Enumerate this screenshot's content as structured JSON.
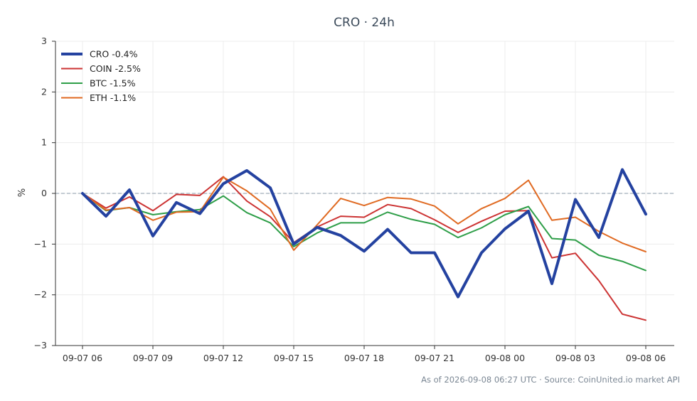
{
  "chart_data": {
    "type": "line",
    "title": "CRO · 24h",
    "xlabel": "",
    "ylabel": "%",
    "ylim": [
      -3,
      3
    ],
    "yticks": [
      -3,
      -2,
      -1,
      0,
      1,
      2,
      3
    ],
    "ytick_labels": [
      "−3",
      "−2",
      "−1",
      "0",
      "1",
      "2",
      "3"
    ],
    "x_tick_labels": [
      "09-07 06",
      "09-07 09",
      "09-07 12",
      "09-07 15",
      "09-07 18",
      "09-07 21",
      "09-08 00",
      "09-08 03",
      "09-08 06"
    ],
    "x": [
      "09-07 06",
      "09-07 07",
      "09-07 08",
      "09-07 09",
      "09-07 10",
      "09-07 11",
      "09-07 12",
      "09-07 13",
      "09-07 14",
      "09-07 15",
      "09-07 16",
      "09-07 17",
      "09-07 18",
      "09-07 19",
      "09-07 20",
      "09-07 21",
      "09-07 22",
      "09-07 23",
      "09-08 00",
      "09-08 01",
      "09-08 02",
      "09-08 03",
      "09-08 04",
      "09-08 05",
      "09-08 06"
    ],
    "grid": true,
    "legend_position": "top-left",
    "zero_line": true,
    "series": [
      {
        "name": "CRO -0.4%",
        "color": "#2442a0",
        "width": 4,
        "values": [
          0,
          -0.45,
          0.07,
          -0.84,
          -0.18,
          -0.4,
          0.19,
          0.45,
          0.11,
          -1.0,
          -0.67,
          -0.83,
          -1.14,
          -0.71,
          -1.17,
          -1.17,
          -2.04,
          -1.17,
          -0.7,
          -0.35,
          -1.78,
          -0.12,
          -0.87,
          0.47,
          -0.41
        ]
      },
      {
        "name": "COIN -2.5%",
        "color": "#cc3333",
        "width": 2,
        "values": [
          0,
          -0.29,
          -0.07,
          -0.34,
          -0.02,
          -0.04,
          0.33,
          -0.15,
          -0.46,
          -0.97,
          -0.66,
          -0.45,
          -0.47,
          -0.22,
          -0.3,
          -0.52,
          -0.77,
          -0.55,
          -0.35,
          -0.34,
          -1.27,
          -1.18,
          -1.72,
          -2.38,
          -2.5
        ]
      },
      {
        "name": "BTC -1.5%",
        "color": "#2e9e48",
        "width": 2,
        "values": [
          0,
          -0.34,
          -0.28,
          -0.42,
          -0.36,
          -0.32,
          -0.05,
          -0.38,
          -0.58,
          -1.05,
          -0.78,
          -0.58,
          -0.58,
          -0.37,
          -0.51,
          -0.61,
          -0.87,
          -0.68,
          -0.42,
          -0.26,
          -0.89,
          -0.92,
          -1.22,
          -1.34,
          -1.52
        ]
      },
      {
        "name": "ETH -1.1%",
        "color": "#e06a22",
        "width": 2,
        "values": [
          0,
          -0.33,
          -0.28,
          -0.53,
          -0.37,
          -0.36,
          0.32,
          0.05,
          -0.31,
          -1.12,
          -0.62,
          -0.1,
          -0.24,
          -0.08,
          -0.11,
          -0.25,
          -0.6,
          -0.3,
          -0.1,
          0.26,
          -0.53,
          -0.47,
          -0.75,
          -0.98,
          -1.15
        ]
      }
    ]
  },
  "footer": {
    "text": "As of 2026-09-08 06:27 UTC · Source: CoinUnited.io market API"
  }
}
